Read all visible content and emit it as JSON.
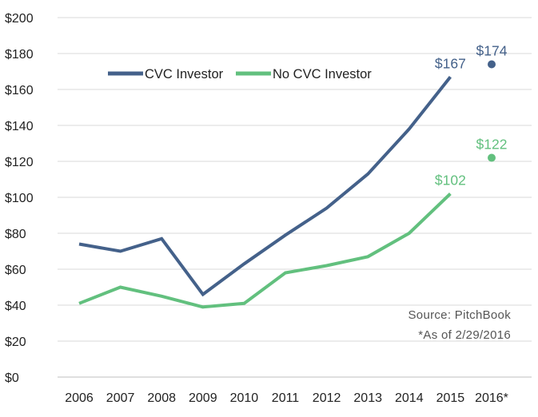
{
  "chart_data": {
    "type": "line",
    "title": "",
    "xlabel": "",
    "ylabel": "",
    "categories": [
      "2006",
      "2007",
      "2008",
      "2009",
      "2010",
      "2011",
      "2012",
      "2013",
      "2014",
      "2015",
      "2016*"
    ],
    "ylim": [
      0,
      200
    ],
    "yticks": [
      0,
      20,
      40,
      60,
      80,
      100,
      120,
      140,
      160,
      180,
      200
    ],
    "ytick_labels": [
      "$0",
      "$20",
      "$40",
      "$60",
      "$80",
      "$100",
      "$120",
      "$140",
      "$160",
      "$180",
      "$200"
    ],
    "grid": "horizontal",
    "legend_position": "top-left",
    "series": [
      {
        "name": "CVC Investor",
        "color": "#44618a",
        "values": [
          74,
          70,
          77,
          46,
          63,
          79,
          94,
          113,
          138,
          167,
          null
        ],
        "extra_point": {
          "category": "2016*",
          "value": 174,
          "label": "$174"
        },
        "end_label": {
          "category": "2015",
          "value": 167,
          "label": "$167"
        }
      },
      {
        "name": "No CVC Investor",
        "color": "#62c07e",
        "values": [
          41,
          50,
          45,
          39,
          41,
          58,
          62,
          67,
          80,
          102,
          null
        ],
        "extra_point": {
          "category": "2016*",
          "value": 122,
          "label": "$122"
        },
        "end_label": {
          "category": "2015",
          "value": 102,
          "label": "$102"
        }
      }
    ],
    "annotations": [
      "Source: PitchBook",
      "*As of 2/29/2016"
    ]
  }
}
